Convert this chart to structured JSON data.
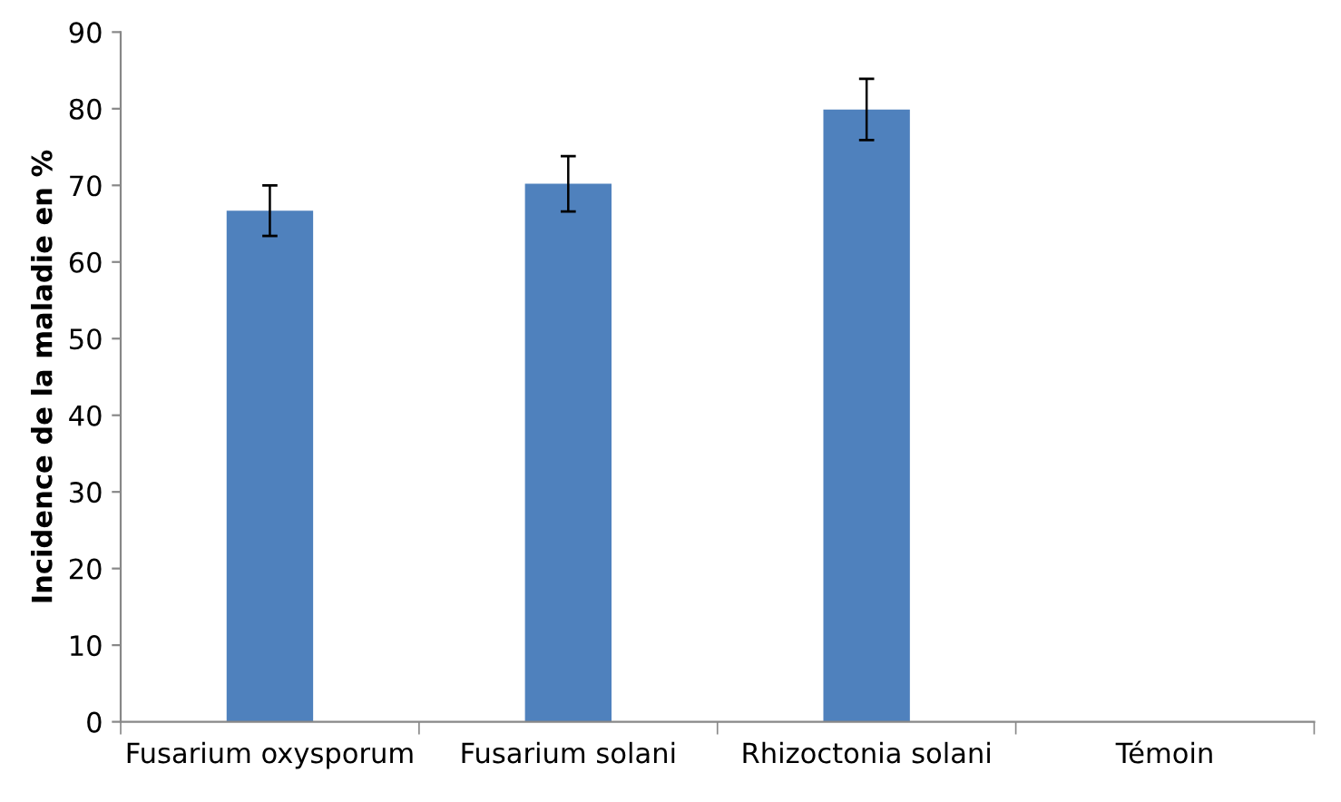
{
  "chart_data": {
    "type": "bar",
    "ylabel": "Incidence de la maladie en %",
    "categories": [
      "Fusarium oxysporum",
      "Fusarium solani",
      "Rhizoctonia solani",
      "Témoin"
    ],
    "values": [
      66.7,
      70.2,
      79.9,
      0
    ],
    "errors": [
      3.3,
      3.6,
      4,
      null
    ],
    "color": "#4f81bd",
    "ylim": [
      0,
      90
    ],
    "yticks": [
      0,
      10,
      20,
      30,
      40,
      50,
      60,
      70,
      80,
      90
    ],
    "grid": false
  }
}
